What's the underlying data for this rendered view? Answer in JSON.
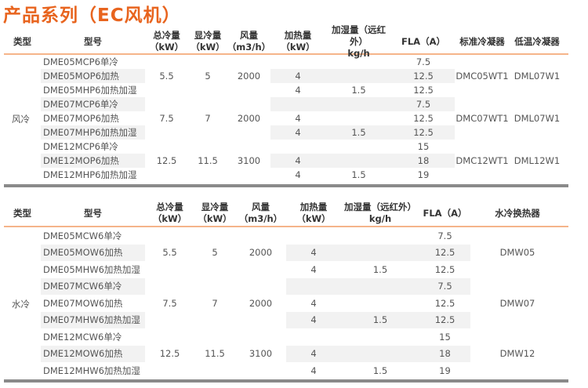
{
  "title": "产品系列（EC风机）",
  "air_table": {
    "type": "风冷",
    "headers": [
      "类型",
      "型号",
      "总冷量\n（kW）",
      "显冷量\n（kW）",
      "风量\n（m3/h）",
      "加热量\n（kW）",
      "加湿量（远红外）\nkg/h",
      "FLA（A）",
      "标准冷凝器",
      "低温冷凝器"
    ],
    "groups": [
      {
        "total": "5.5",
        "sensible": "5",
        "airflow": "2000",
        "std_condenser": "DMC05WT1",
        "low_condenser": "DML07W1",
        "rows": [
          {
            "model": "DME05MCP6单冷",
            "heat": "",
            "humid": "",
            "fla": "7.5"
          },
          {
            "model": "DME05MOP6加热",
            "heat": "4",
            "humid": "",
            "fla": "12.5"
          },
          {
            "model": "DME05MHP6加热加湿",
            "heat": "4",
            "humid": "1.5",
            "fla": "12.5"
          }
        ]
      },
      {
        "total": "7.5",
        "sensible": "7",
        "airflow": "2000",
        "std_condenser": "DMC07WT1",
        "low_condenser": "DML07W1",
        "rows": [
          {
            "model": "DME07MCP6单冷",
            "heat": "",
            "humid": "",
            "fla": "7.5"
          },
          {
            "model": "DME07MOP6加热",
            "heat": "4",
            "humid": "",
            "fla": "12.5"
          },
          {
            "model": "DME07MHP6加热加湿",
            "heat": "4",
            "humid": "1.5",
            "fla": "12.5"
          }
        ]
      },
      {
        "total": "12.5",
        "sensible": "11.5",
        "airflow": "3100",
        "std_condenser": "DMC12WT1",
        "low_condenser": "DML12W1",
        "rows": [
          {
            "model": "DME12MCP6单冷",
            "heat": "",
            "humid": "",
            "fla": "15"
          },
          {
            "model": "DME12MOP6加热",
            "heat": "4",
            "humid": "",
            "fla": "18"
          },
          {
            "model": "DME12MHP6加热加湿",
            "heat": "4",
            "humid": "1.5",
            "fla": "19"
          }
        ]
      }
    ]
  },
  "water_table": {
    "type": "水冷",
    "headers": [
      "类型",
      "型号",
      "总冷量\n（kW）",
      "显冷量\n（kW）",
      "风量\n（m3/h）",
      "加热量\n（kW）",
      "加湿量（远红外）\nkg/h",
      "FLA（A）",
      "水冷换热器"
    ],
    "groups": [
      {
        "total": "5.5",
        "sensible": "5",
        "airflow": "2000",
        "exchanger": "DMW05",
        "rows": [
          {
            "model": "DME05MCW6单冷",
            "heat": "",
            "humid": "",
            "fla": "7.5"
          },
          {
            "model": "DME05MOW6加热",
            "heat": "4",
            "humid": "",
            "fla": "12.5"
          },
          {
            "model": "DME05MHW6加热加湿",
            "heat": "4",
            "humid": "1.5",
            "fla": "12.5"
          }
        ]
      },
      {
        "total": "7.5",
        "sensible": "7",
        "airflow": "2000",
        "exchanger": "DMW07",
        "rows": [
          {
            "model": "DME07MCW6单冷",
            "heat": "",
            "humid": "",
            "fla": "7.5"
          },
          {
            "model": "DME07MOW6加热",
            "heat": "4",
            "humid": "",
            "fla": "12.5"
          },
          {
            "model": "DME07MHW6加热加湿",
            "heat": "4",
            "humid": "1.5",
            "fla": "12.5"
          }
        ]
      },
      {
        "total": "12.5",
        "sensible": "11.5",
        "airflow": "3100",
        "exchanger": "DMW12",
        "rows": [
          {
            "model": "DME12MCW6单冷",
            "heat": "",
            "humid": "",
            "fla": "15"
          },
          {
            "model": "DME12MOW6加热",
            "heat": "4",
            "humid": "",
            "fla": "18"
          },
          {
            "model": "DME12MHW6加热加湿",
            "heat": "4",
            "humid": "1.5",
            "fla": "19"
          }
        ]
      }
    ]
  }
}
